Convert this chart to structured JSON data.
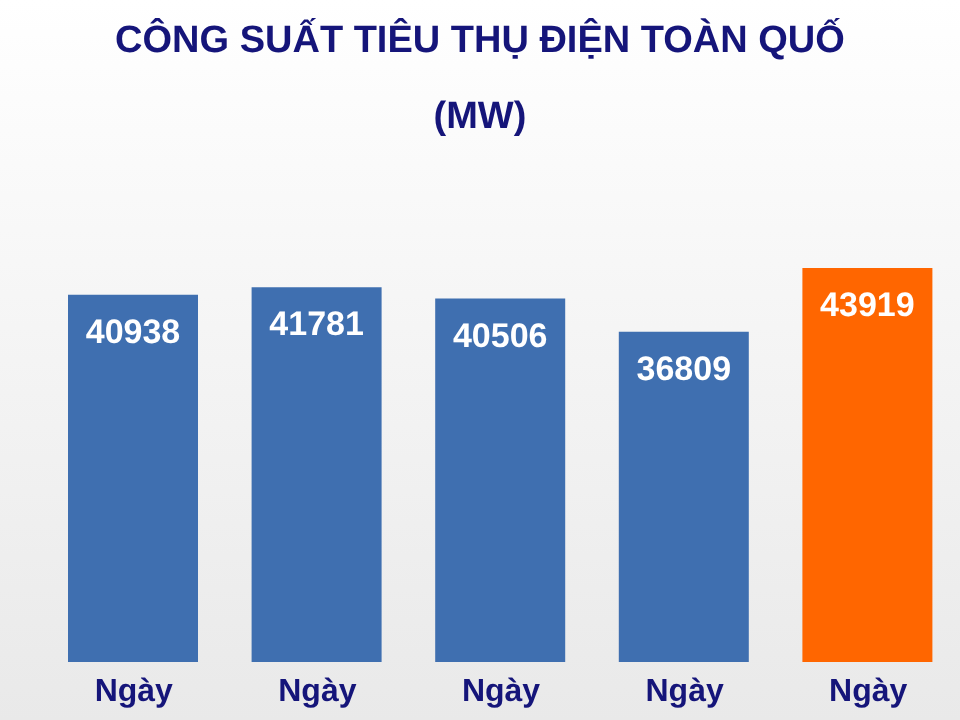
{
  "chart_data": {
    "type": "bar",
    "title": "CÔNG SUẤT TIÊU THỤ ĐIỆN TOÀN QUỐ",
    "subtitle": "(MW)",
    "categories": [
      "Ngày",
      "Ngày",
      "Ngày",
      "Ngày",
      "Ngày"
    ],
    "values": [
      40938,
      41781,
      40506,
      36809,
      43919
    ],
    "colors": [
      "#3f6fb0",
      "#3f6fb0",
      "#3f6fb0",
      "#3f6fb0",
      "#ff6600"
    ],
    "tick_labels": "x",
    "data_labels": true
  }
}
